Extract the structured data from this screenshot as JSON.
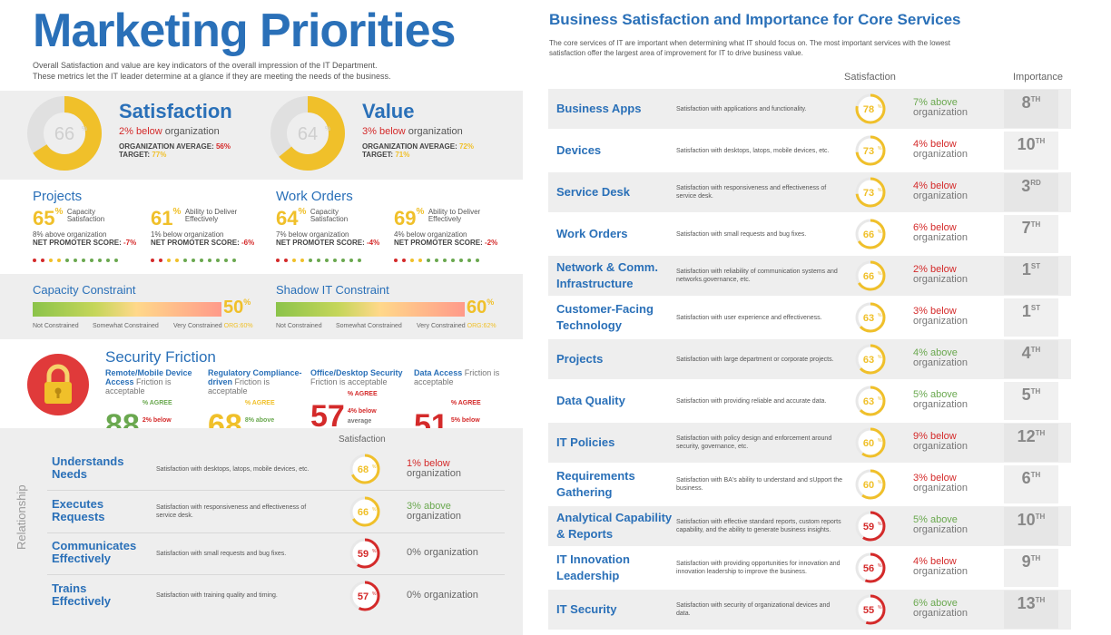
{
  "colors": {
    "blue": "#2a70b8",
    "green": "#6aa84f",
    "red": "#d42a2a",
    "yellow": "#f0c02a",
    "band": "#eeeeee"
  },
  "header": {
    "title": "Marketing Priorities",
    "intro_line1": "Overall Satisfaction and value are key indicators of the overall impression of the IT Department.",
    "intro_line2": "These metrics let the IT leader determine at a glance if they are meeting the needs of the business."
  },
  "satisfaction": {
    "value": "66",
    "fraction": 0.66,
    "title": "Satisfaction",
    "delta": "2% below",
    "delta_suffix": "organization",
    "avg_label": "ORGANIZATION AVERAGE:",
    "avg_value": "56%",
    "target_label": "TARGET:",
    "target_value": "77%"
  },
  "value": {
    "value": "64",
    "fraction": 0.64,
    "title": "Value",
    "delta": "3% below",
    "delta_suffix": "organization",
    "avg_label": "ORGANIZATION AVERAGE:",
    "avg_value": "72%",
    "target_label": "TARGET:",
    "target_value": "71%"
  },
  "projects": {
    "title": "Projects",
    "items": [
      {
        "pct": "65",
        "label1": "Capacity",
        "label2": "Satisfaction",
        "delta": "8% above organization",
        "nps_label": "NET PROMOTER SCORE:",
        "nps": "-7%"
      },
      {
        "pct": "61",
        "label1": "Ability to Deliver",
        "label2": "Effectively",
        "delta": "1% below organization",
        "nps_label": "NET PROMOTER SCORE:",
        "nps": "-6%"
      }
    ]
  },
  "work_orders": {
    "title": "Work Orders",
    "items": [
      {
        "pct": "64",
        "label1": "Capacity",
        "label2": "Satisfaction",
        "delta": "7% below organization",
        "nps_label": "NET PROMOTER SCORE:",
        "nps": "-4%"
      },
      {
        "pct": "69",
        "label1": "Ability to Deliver",
        "label2": "Effectively",
        "delta": "4% below organization",
        "nps_label": "NET PROMOTER SCORE:",
        "nps": "-2%"
      }
    ]
  },
  "capacity": {
    "title": "Capacity Constraint",
    "value": "50",
    "value_fraction": 0.5,
    "scale": [
      "Not Constrained",
      "Somewhat Constrained",
      "Very Constrained"
    ],
    "org_label": "ORG:",
    "org": "60%"
  },
  "shadow": {
    "title": "Shadow IT Constraint",
    "value": "60",
    "value_fraction": 0.6,
    "scale": [
      "Not Constrained",
      "Somewhat Constrained",
      "Very Constrained"
    ],
    "org_label": "ORG:",
    "org": "62%"
  },
  "security": {
    "title": "Security Friction",
    "items": [
      {
        "head": "Remote/Mobile Device Access",
        "tail": "Friction is acceptable",
        "num": "88",
        "agree": "% AGREE",
        "delta": "2% below",
        "avg": "average",
        "color": "#6aa84f"
      },
      {
        "head": "Regulatory Compliance-driven",
        "tail": "Friction is acceptable",
        "num": "68",
        "agree": "% AGREE",
        "delta": "8% above",
        "avg": "average",
        "color": "#f0c02a"
      },
      {
        "head": "Office/Desktop Security",
        "tail": "Friction is acceptable",
        "num": "57",
        "agree": "% AGREE",
        "delta": "4% below",
        "avg": "average",
        "color": "#d42a2a"
      },
      {
        "head": "Data Access",
        "tail": "Friction is acceptable",
        "num": "51",
        "agree": "% AGREE",
        "delta": "5% below",
        "avg": "average",
        "color": "#d42a2a"
      }
    ]
  },
  "relationship": {
    "side_label": "Relationship",
    "col_head": "Satisfaction",
    "rows": [
      {
        "line1": "Understands",
        "line2": "Needs",
        "desc": "Satisfaction with desktops, latops, mobile devices, etc.",
        "score": "68",
        "fraction": 0.68,
        "color": "#f0c02a",
        "delta": "1% below",
        "delta_color": "#d42a2a",
        "suffix": "organization"
      },
      {
        "line1": "Executes",
        "line2": "Requests",
        "desc": "Satisfaction with responsiveness and effectiveness of service desk.",
        "score": "66",
        "fraction": 0.66,
        "color": "#f0c02a",
        "delta": "3% above",
        "delta_color": "#6aa84f",
        "suffix": "organization"
      },
      {
        "line1": "Communicates",
        "line2": "Effectively",
        "desc": "Satisfaction with small requests and bug fixes.",
        "score": "59",
        "fraction": 0.59,
        "color": "#d42a2a",
        "delta": "0% organization",
        "delta_color": "#666666",
        "suffix": ""
      },
      {
        "line1": "Trains",
        "line2": "Effectively",
        "desc": "Satisfaction with training quality and timing.",
        "score": "57",
        "fraction": 0.57,
        "color": "#d42a2a",
        "delta": "0% organization",
        "delta_color": "#666666",
        "suffix": ""
      }
    ]
  },
  "core": {
    "title": "Business Satisfaction and Importance for Core Services",
    "intro_line1": "The core services of IT are important when determining what IT should focus on. The most important services with the lowest",
    "intro_line2": "satisfaction offer the largest area of improvement for IT to drive business value.",
    "col_satisfaction": "Satisfaction",
    "col_importance": "Importance",
    "rows": [
      {
        "line1": "Business Apps",
        "line2": "",
        "desc": "Satisfaction with applications and functionality.",
        "score": "78",
        "fraction": 0.78,
        "color": "#f0c02a",
        "delta": "7% above",
        "delta_color": "#6aa84f",
        "rank": "8",
        "sup": "TH"
      },
      {
        "line1": "Devices",
        "line2": "",
        "desc": "Satisfaction with desktops, latops, mobile devices, etc.",
        "score": "73",
        "fraction": 0.73,
        "color": "#f0c02a",
        "delta": "4% below",
        "delta_color": "#d42a2a",
        "rank": "10",
        "sup": "TH"
      },
      {
        "line1": "Service Desk",
        "line2": "",
        "desc": "Satisfaction with responsiveness and effectiveness of service desk.",
        "score": "73",
        "fraction": 0.73,
        "color": "#f0c02a",
        "delta": "4% below",
        "delta_color": "#d42a2a",
        "rank": "3",
        "sup": "RD"
      },
      {
        "line1": "Work Orders",
        "line2": "",
        "desc": "Satisfaction with small requests and bug fixes.",
        "score": "66",
        "fraction": 0.66,
        "color": "#f0c02a",
        "delta": "6% below",
        "delta_color": "#d42a2a",
        "rank": "7",
        "sup": "TH"
      },
      {
        "line1": "Network & Comm.",
        "line2": "Infrastructure",
        "desc": "Satisfaction with reliability of communication systems and networks.governance, etc.",
        "score": "66",
        "fraction": 0.66,
        "color": "#f0c02a",
        "delta": "2% below",
        "delta_color": "#d42a2a",
        "rank": "1",
        "sup": "ST"
      },
      {
        "line1": "Customer-Facing",
        "line2": "Technology",
        "desc": "Satisfaction with user experience and effectiveness.",
        "score": "63",
        "fraction": 0.63,
        "color": "#f0c02a",
        "delta": "3% below",
        "delta_color": "#d42a2a",
        "rank": "1",
        "sup": "ST"
      },
      {
        "line1": "Projects",
        "line2": "",
        "desc": "Satisfaction with large department or corporate projects.",
        "score": "63",
        "fraction": 0.63,
        "color": "#f0c02a",
        "delta": "4% above",
        "delta_color": "#6aa84f",
        "rank": "4",
        "sup": "TH"
      },
      {
        "line1": "Data Quality",
        "line2": "",
        "desc": "Satisfaction with providing reliable and accurate data.",
        "score": "63",
        "fraction": 0.63,
        "color": "#f0c02a",
        "delta": "5% above",
        "delta_color": "#6aa84f",
        "rank": "5",
        "sup": "TH"
      },
      {
        "line1": "IT Policies",
        "line2": "",
        "desc": "Satisfaction with policy design and enforcement around security, governance, etc.",
        "score": "60",
        "fraction": 0.6,
        "color": "#f0c02a",
        "delta": "9% below",
        "delta_color": "#d42a2a",
        "rank": "12",
        "sup": "TH"
      },
      {
        "line1": "Requirements",
        "line2": "Gathering",
        "desc": "Satisfaction with BA's ability to understand and sUpport the business.",
        "score": "60",
        "fraction": 0.6,
        "color": "#f0c02a",
        "delta": "3% below",
        "delta_color": "#d42a2a",
        "rank": "6",
        "sup": "TH"
      },
      {
        "line1": "Analytical Capability",
        "line2": "& Reports",
        "desc": "Satisfaction with effective standard reports, custom reports capability, and the ability to generate business insights.",
        "score": "59",
        "fraction": 0.59,
        "color": "#d42a2a",
        "delta": "5% above",
        "delta_color": "#6aa84f",
        "rank": "10",
        "sup": "TH"
      },
      {
        "line1": "IT Innovation",
        "line2": "Leadership",
        "desc": "Satisfaction with providing opportunities for innovation and innovation leadership to improve the business.",
        "score": "56",
        "fraction": 0.56,
        "color": "#d42a2a",
        "delta": "4% below",
        "delta_color": "#d42a2a",
        "rank": "9",
        "sup": "TH"
      },
      {
        "line1": "IT Security",
        "line2": "",
        "desc": "Satisfaction with security of organizational devices and data.",
        "score": "55",
        "fraction": 0.55,
        "color": "#d42a2a",
        "delta": "6% above",
        "delta_color": "#6aa84f",
        "rank": "13",
        "sup": "TH"
      }
    ],
    "suffix": "organization"
  }
}
